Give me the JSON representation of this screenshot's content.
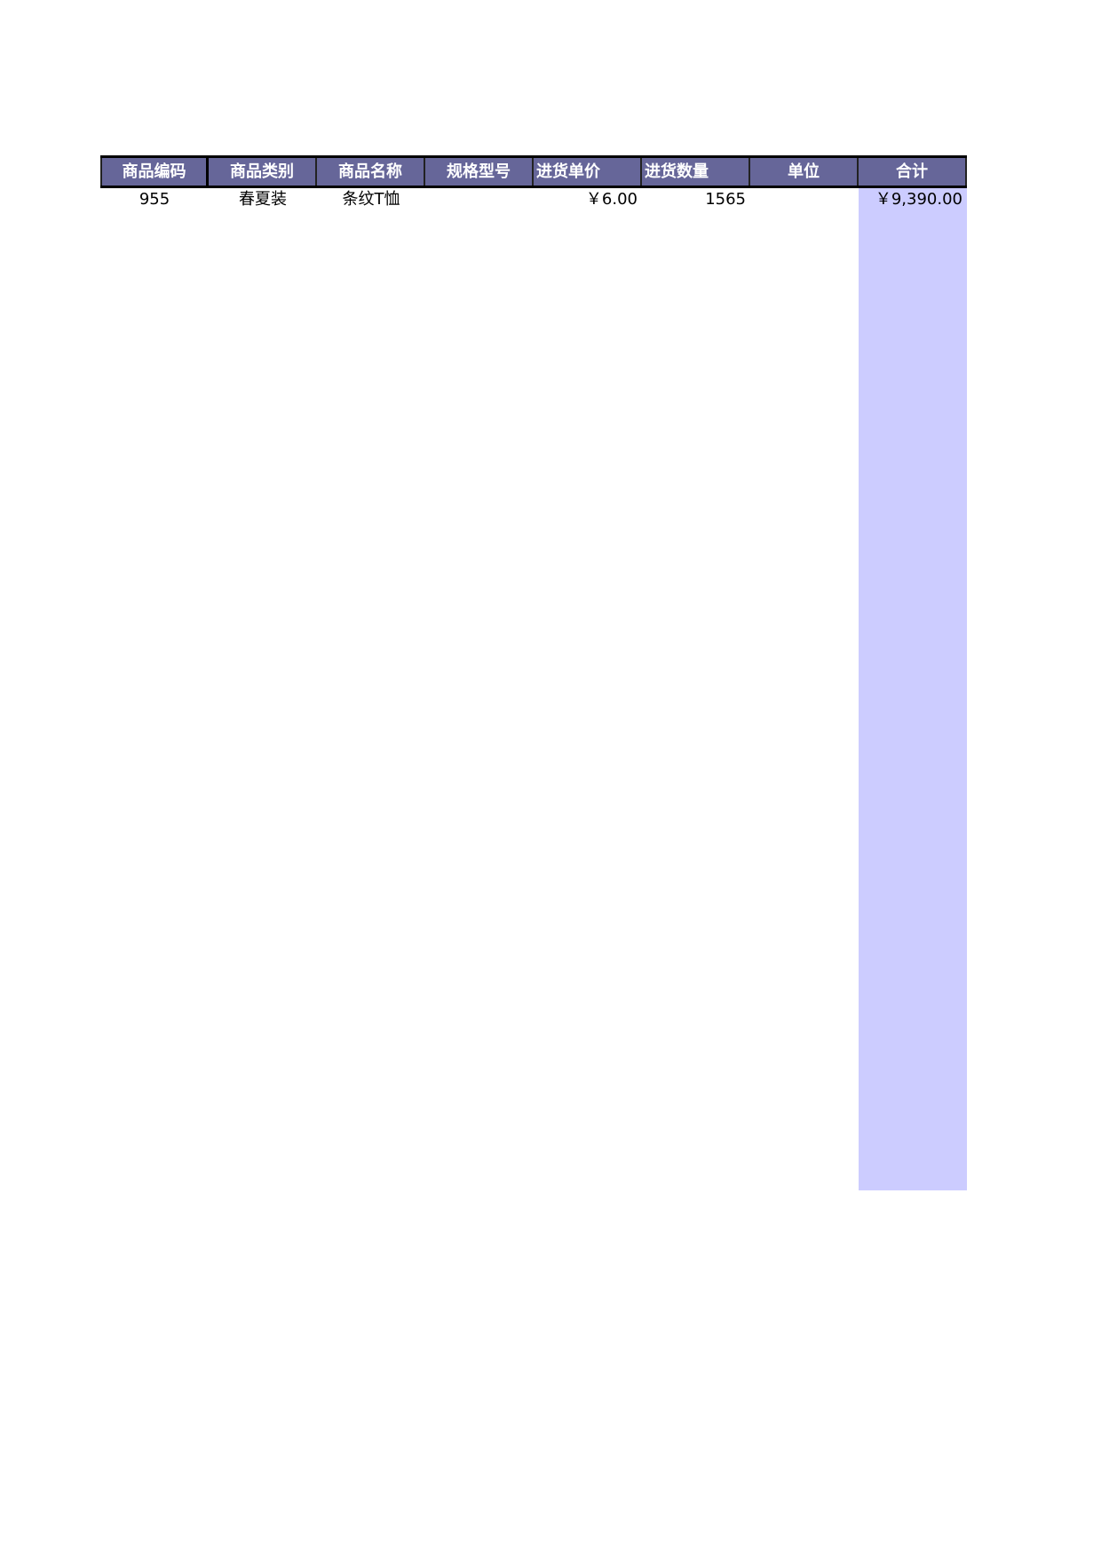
{
  "headers": [
    "商品编码",
    "商品类别",
    "商品名称",
    "规格型号",
    "进货单价",
    "进货数量",
    "单位",
    "合计"
  ],
  "rows": [
    [
      "955",
      "春夏装",
      "条纹T恤",
      "",
      "￥6.00",
      "1565",
      "",
      "￥9,390.00"
    ]
  ],
  "colors": {
    "header_bg": "#666699",
    "total_column_bg": "#ccccff"
  }
}
